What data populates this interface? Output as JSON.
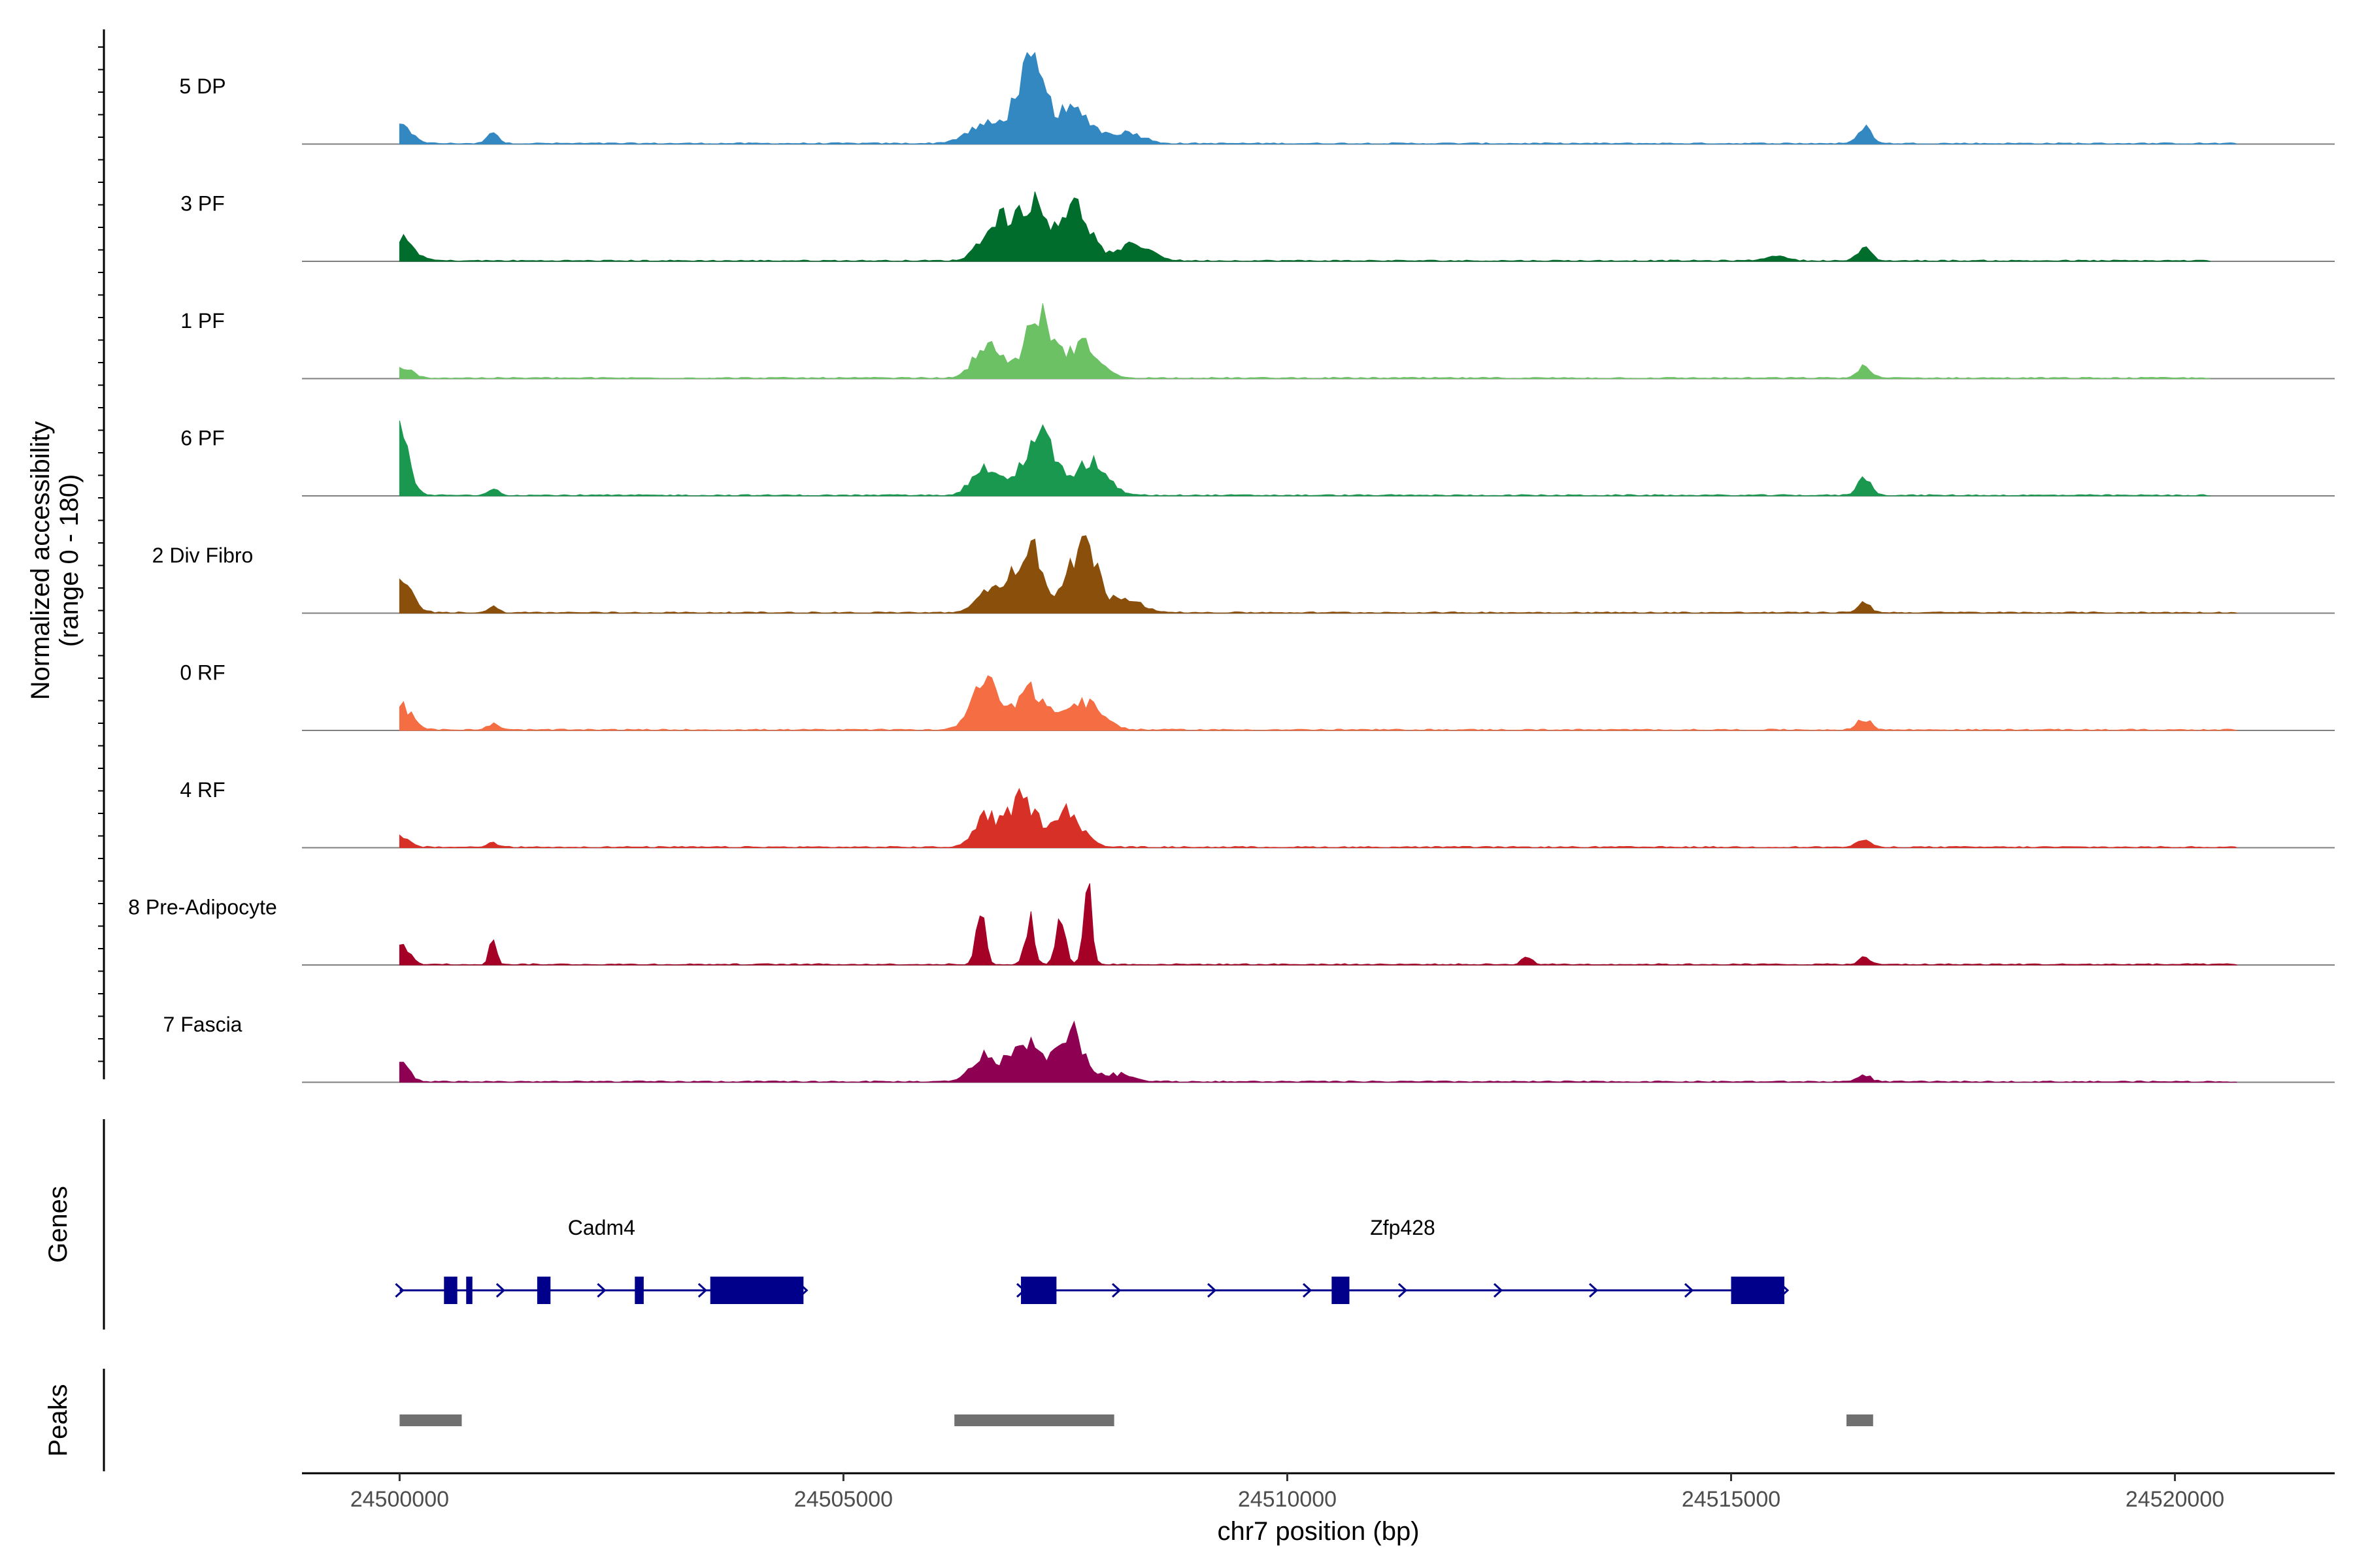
{
  "chart_data": {
    "type": "area",
    "title": "",
    "ylabel_line1": "Normalized accessibility",
    "ylabel_line2": "(range 0 - 180)",
    "yrange": [
      0,
      180
    ],
    "xlabel": "chr7 position (bp)",
    "xlim": [
      24498900,
      24521800
    ],
    "xticks": [
      24500000,
      24505000,
      24510000,
      24515000,
      24520000
    ],
    "xtick_labels": [
      "24500000",
      "24505000",
      "24510000",
      "24515000",
      "24520000"
    ],
    "tracks": [
      {
        "name": "5 DP",
        "color": "#3388C2",
        "start": 24500000,
        "end": 24520700,
        "peaks": [
          [
            24500000,
            0.2,
            0.25,
            10
          ],
          [
            24501050,
            0.12,
            0.12,
            6
          ],
          [
            24506600,
            0.2,
            0.4,
            35
          ],
          [
            24507100,
            0.82,
            0.32,
            60
          ],
          [
            24507600,
            0.35,
            0.4,
            45
          ],
          [
            24508200,
            0.12,
            0.35,
            40
          ],
          [
            24516500,
            0.2,
            0.15,
            8
          ]
        ]
      },
      {
        "name": "3 PF",
        "color": "#006D2C",
        "start": 24500000,
        "end": 24520400,
        "peaks": [
          [
            24500000,
            0.25,
            0.3,
            10
          ],
          [
            24506700,
            0.42,
            0.3,
            35
          ],
          [
            24507100,
            0.62,
            0.35,
            50
          ],
          [
            24507600,
            0.58,
            0.35,
            50
          ],
          [
            24508300,
            0.18,
            0.35,
            35
          ],
          [
            24515500,
            0.05,
            0.25,
            20
          ],
          [
            24516500,
            0.13,
            0.15,
            8
          ]
        ]
      },
      {
        "name": "1 PF",
        "color": "#6BC164",
        "start": 24500000,
        "end": 24520400,
        "peaks": [
          [
            24500000,
            0.12,
            0.25,
            10
          ],
          [
            24506500,
            0.18,
            0.2,
            30
          ],
          [
            24506700,
            0.3,
            0.25,
            35
          ],
          [
            24507200,
            0.68,
            0.3,
            55
          ],
          [
            24507700,
            0.36,
            0.35,
            40
          ],
          [
            24516500,
            0.12,
            0.15,
            8
          ]
        ]
      },
      {
        "name": "6 PF",
        "color": "#1A9850",
        "start": 24500000,
        "end": 24520400,
        "peaks": [
          [
            24500000,
            0.72,
            0.2,
            12
          ],
          [
            24501050,
            0.08,
            0.12,
            6
          ],
          [
            24506600,
            0.3,
            0.3,
            30
          ],
          [
            24507200,
            0.66,
            0.35,
            55
          ],
          [
            24507800,
            0.36,
            0.35,
            45
          ],
          [
            24516500,
            0.18,
            0.15,
            8
          ]
        ]
      },
      {
        "name": "2 Div Fibro",
        "color": "#8B4F0C",
        "start": 24500000,
        "end": 24520700,
        "peaks": [
          [
            24500000,
            0.42,
            0.25,
            12
          ],
          [
            24501050,
            0.06,
            0.12,
            6
          ],
          [
            24506700,
            0.32,
            0.3,
            35
          ],
          [
            24507100,
            0.7,
            0.3,
            45
          ],
          [
            24507700,
            0.78,
            0.3,
            40
          ],
          [
            24508200,
            0.14,
            0.35,
            30
          ],
          [
            24516500,
            0.1,
            0.15,
            8
          ]
        ]
      },
      {
        "name": "0 RF",
        "color": "#F46D43",
        "start": 24500000,
        "end": 24520700,
        "peaks": [
          [
            24500000,
            0.28,
            0.25,
            10
          ],
          [
            24501050,
            0.07,
            0.12,
            6
          ],
          [
            24506600,
            0.52,
            0.3,
            30
          ],
          [
            24507100,
            0.42,
            0.35,
            45
          ],
          [
            24507700,
            0.3,
            0.4,
            45
          ],
          [
            24516500,
            0.12,
            0.15,
            8
          ]
        ]
      },
      {
        "name": "4 RF",
        "color": "#D73027",
        "start": 24500000,
        "end": 24520700,
        "peaks": [
          [
            24500000,
            0.12,
            0.2,
            10
          ],
          [
            24501050,
            0.05,
            0.12,
            6
          ],
          [
            24506600,
            0.32,
            0.25,
            25
          ],
          [
            24507000,
            0.52,
            0.3,
            35
          ],
          [
            24507500,
            0.4,
            0.35,
            40
          ],
          [
            24516500,
            0.08,
            0.15,
            8
          ]
        ]
      },
      {
        "name": "8 Pre-Adipocyte",
        "color": "#A50026",
        "start": 24500000,
        "end": 24520700,
        "peaks": [
          [
            24500000,
            0.22,
            0.2,
            10
          ],
          [
            24501050,
            0.3,
            0.08,
            6
          ],
          [
            24506550,
            0.62,
            0.1,
            20
          ],
          [
            24507100,
            0.48,
            0.1,
            25
          ],
          [
            24507450,
            0.58,
            0.1,
            20
          ],
          [
            24507750,
            0.95,
            0.09,
            15
          ],
          [
            24512700,
            0.08,
            0.12,
            10
          ],
          [
            24516500,
            0.07,
            0.12,
            8
          ]
        ]
      },
      {
        "name": "7 Fascia",
        "color": "#8E0152",
        "start": 24500000,
        "end": 24520700,
        "peaks": [
          [
            24500000,
            0.2,
            0.2,
            10
          ],
          [
            24506600,
            0.28,
            0.3,
            30
          ],
          [
            24507050,
            0.44,
            0.3,
            35
          ],
          [
            24507550,
            0.56,
            0.3,
            40
          ],
          [
            24508100,
            0.08,
            0.35,
            30
          ],
          [
            24516500,
            0.07,
            0.15,
            8
          ]
        ]
      }
    ],
    "genes_track_title": "Genes",
    "genes": [
      {
        "name": "Cadm4",
        "strand": "+",
        "start": 24500000,
        "end": 24504550,
        "exons": [
          [
            24500500,
            24500650
          ],
          [
            24500750,
            24500820
          ],
          [
            24501550,
            24501700
          ],
          [
            24502650,
            24502750
          ],
          [
            24503500,
            24504550
          ]
        ]
      },
      {
        "name": "Zfp428",
        "strand": "+",
        "start": 24507000,
        "end": 24515600,
        "exons": [
          [
            24507000,
            24507400
          ],
          [
            24510500,
            24510700
          ],
          [
            24515000,
            24515600
          ]
        ]
      }
    ],
    "gene_color": "#00008B",
    "peaks_track_title": "Peaks",
    "peak_color": "#707070",
    "peak_regions": [
      [
        24500000,
        24500700
      ],
      [
        24506250,
        24508050
      ],
      [
        24516300,
        24516600
      ]
    ]
  }
}
